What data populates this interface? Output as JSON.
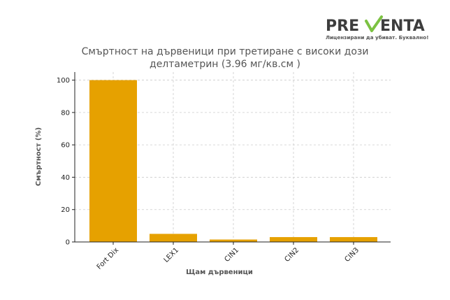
{
  "logo": {
    "brand_prefix": "PRE",
    "brand_suffix": "ENTA",
    "tagline": "Лицензирани да убиват. Буквално!",
    "brand_color": "#3d3d3d",
    "accent_color": "#7cc242"
  },
  "chart_data": {
    "type": "bar",
    "title_line1": "Смъртност на дървеници при третиране с високи дози",
    "title_line2": "делтаметрин (3.96 мг/кв.см )",
    "xlabel": "Щам дървеници",
    "ylabel": "Смъртност (%)",
    "categories": [
      "Fort Dix",
      "LEX1",
      "CIN1",
      "CIN2",
      "CIN3"
    ],
    "values": [
      100,
      5,
      1.5,
      3,
      3
    ],
    "ylim": [
      0,
      105
    ],
    "yticks": [
      0,
      20,
      40,
      60,
      80,
      100
    ],
    "grid": true,
    "bar_color": "#e6a100"
  }
}
